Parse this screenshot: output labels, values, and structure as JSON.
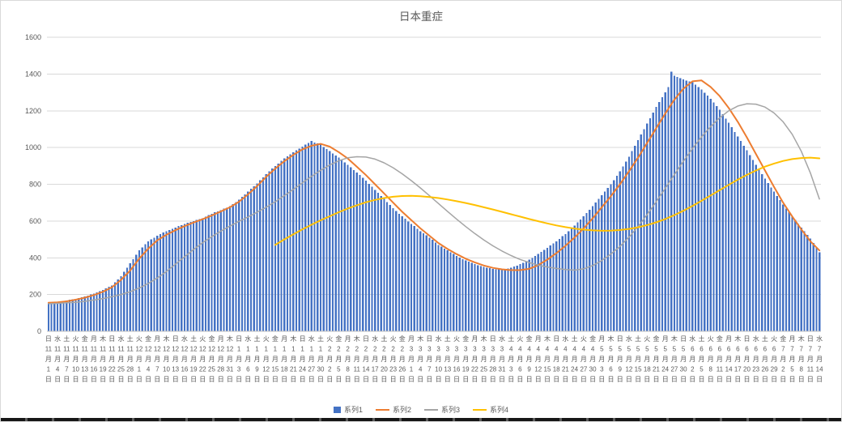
{
  "chart_data": {
    "type": "combo",
    "title": "日本重症",
    "grid": true,
    "legend_position": "bottom",
    "y_axis": {
      "ticks": [
        0,
        200,
        400,
        600,
        800,
        1000,
        1200,
        1400,
        1600
      ]
    },
    "x_axis": {
      "month_suffix": "月",
      "day_suffix": "日",
      "tick_labels": [
        [
          "日",
          11,
          1
        ],
        [
          "水",
          11,
          4
        ],
        [
          "土",
          11,
          7
        ],
        [
          "火",
          11,
          10
        ],
        [
          "金",
          11,
          13
        ],
        [
          "月",
          11,
          16
        ],
        [
          "木",
          11,
          19
        ],
        [
          "日",
          11,
          22
        ],
        [
          "水",
          11,
          25
        ],
        [
          "土",
          11,
          28
        ],
        [
          "火",
          12,
          1
        ],
        [
          "金",
          12,
          4
        ],
        [
          "月",
          12,
          7
        ],
        [
          "木",
          12,
          10
        ],
        [
          "日",
          12,
          13
        ],
        [
          "水",
          12,
          16
        ],
        [
          "土",
          12,
          19
        ],
        [
          "火",
          12,
          22
        ],
        [
          "金",
          12,
          25
        ],
        [
          "月",
          12,
          28
        ],
        [
          "木",
          12,
          31
        ],
        [
          "日",
          1,
          3
        ],
        [
          "水",
          1,
          6
        ],
        [
          "土",
          1,
          9
        ],
        [
          "火",
          1,
          12
        ],
        [
          "金",
          1,
          15
        ],
        [
          "月",
          1,
          18
        ],
        [
          "木",
          1,
          21
        ],
        [
          "日",
          1,
          24
        ],
        [
          "水",
          1,
          27
        ],
        [
          "土",
          1,
          30
        ],
        [
          "火",
          2,
          2
        ],
        [
          "金",
          2,
          5
        ],
        [
          "月",
          2,
          8
        ],
        [
          "木",
          2,
          11
        ],
        [
          "日",
          2,
          14
        ],
        [
          "水",
          2,
          17
        ],
        [
          "土",
          2,
          20
        ],
        [
          "火",
          2,
          23
        ],
        [
          "金",
          2,
          26
        ],
        [
          "月",
          3,
          1
        ],
        [
          "木",
          3,
          4
        ],
        [
          "日",
          3,
          7
        ],
        [
          "水",
          3,
          10
        ],
        [
          "土",
          3,
          13
        ],
        [
          "火",
          3,
          16
        ],
        [
          "金",
          3,
          19
        ],
        [
          "月",
          3,
          22
        ],
        [
          "木",
          3,
          25
        ],
        [
          "日",
          3,
          28
        ],
        [
          "水",
          3,
          31
        ],
        [
          "土",
          4,
          3
        ],
        [
          "火",
          4,
          6
        ],
        [
          "金",
          4,
          9
        ],
        [
          "月",
          4,
          12
        ],
        [
          "木",
          4,
          15
        ],
        [
          "日",
          4,
          18
        ],
        [
          "水",
          4,
          21
        ],
        [
          "土",
          4,
          24
        ],
        [
          "火",
          4,
          27
        ],
        [
          "金",
          4,
          30
        ],
        [
          "月",
          5,
          3
        ],
        [
          "木",
          5,
          6
        ],
        [
          "日",
          5,
          9
        ],
        [
          "水",
          5,
          12
        ],
        [
          "土",
          5,
          15
        ],
        [
          "火",
          5,
          18
        ],
        [
          "金",
          5,
          21
        ],
        [
          "月",
          5,
          24
        ],
        [
          "木",
          5,
          27
        ],
        [
          "日",
          5,
          30
        ],
        [
          "水",
          6,
          2
        ],
        [
          "土",
          6,
          5
        ],
        [
          "火",
          6,
          8
        ],
        [
          "金",
          6,
          11
        ],
        [
          "月",
          6,
          14
        ],
        [
          "木",
          6,
          17
        ],
        [
          "日",
          6,
          20
        ],
        [
          "水",
          6,
          23
        ],
        [
          "土",
          6,
          26
        ],
        [
          "火",
          6,
          29
        ],
        [
          "金",
          7,
          2
        ],
        [
          "月",
          7,
          5
        ],
        [
          "木",
          7,
          8
        ],
        [
          "日",
          7,
          11
        ],
        [
          "水",
          7,
          14
        ]
      ]
    },
    "series": [
      {
        "name": "系列1",
        "type": "bar",
        "color": "#4472C4",
        "sampling": "daily",
        "values": [
          155,
          157,
          158,
          160,
          163,
          165,
          168,
          171,
          174,
          177,
          181,
          186,
          190,
          195,
          200,
          205,
          212,
          218,
          225,
          233,
          242,
          250,
          267,
          283,
          300,
          323,
          347,
          370,
          393,
          417,
          440,
          457,
          473,
          490,
          500,
          510,
          520,
          528,
          537,
          545,
          552,
          558,
          565,
          572,
          578,
          585,
          590,
          595,
          600,
          605,
          610,
          615,
          623,
          632,
          640,
          647,
          653,
          660,
          667,
          673,
          680,
          692,
          704,
          716,
          731,
          745,
          760,
          775,
          790,
          805,
          822,
          838,
          855,
          870,
          885,
          900,
          913,
          927,
          940,
          952,
          963,
          975,
          985,
          995,
          1005,
          1015,
          1025,
          1035,
          1028,
          1022,
          1015,
          1003,
          992,
          980,
          968,
          957,
          945,
          932,
          918,
          905,
          892,
          878,
          865,
          850,
          835,
          820,
          803,
          787,
          770,
          753,
          737,
          720,
          703,
          687,
          670,
          655,
          640,
          625,
          612,
          598,
          585,
          572,
          558,
          545,
          533,
          522,
          510,
          497,
          483,
          470,
          460,
          450,
          440,
          430,
          420,
          410,
          402,
          393,
          385,
          378,
          372,
          365,
          360,
          355,
          350,
          347,
          343,
          340,
          338,
          337,
          335,
          338,
          342,
          345,
          352,
          358,
          365,
          373,
          382,
          390,
          400,
          410,
          420,
          432,
          443,
          455,
          467,
          478,
          490,
          503,
          517,
          530,
          545,
          560,
          575,
          592,
          608,
          625,
          643,
          662,
          680,
          700,
          720,
          740,
          760,
          780,
          800,
          823,
          847,
          870,
          897,
          923,
          950,
          980,
          1010,
          1040,
          1070,
          1100,
          1130,
          1160,
          1190,
          1220,
          1247,
          1273,
          1300,
          1330,
          1413,
          1390,
          1383,
          1377,
          1370,
          1365,
          1360,
          1355,
          1342,
          1328,
          1315,
          1298,
          1282,
          1265,
          1245,
          1225,
          1205,
          1182,
          1158,
          1135,
          1110,
          1085,
          1060,
          1035,
          1010,
          985,
          958,
          932,
          905,
          880,
          855,
          830,
          807,
          783,
          760,
          737,
          713,
          690,
          668,
          647,
          625,
          605,
          585,
          565,
          545,
          525,
          505,
          480,
          455,
          430
        ]
      },
      {
        "name": "系列2",
        "type": "line",
        "color": "#ED7D31",
        "sampling": "every-3-days",
        "values": [
          155,
          158,
          163,
          172,
          183,
          197,
          215,
          240,
          280,
          330,
          395,
          450,
          495,
          525,
          550,
          572,
          592,
          610,
          630,
          652,
          675,
          705,
          745,
          790,
          840,
          885,
          925,
          960,
          990,
          1010,
          1020,
          1005,
          975,
          940,
          895,
          850,
          800,
          750,
          700,
          650,
          605,
          560,
          520,
          480,
          448,
          420,
          395,
          375,
          358,
          345,
          337,
          333,
          333,
          340,
          360,
          390,
          425,
          465,
          510,
          560,
          615,
          675,
          735,
          800,
          870,
          945,
          1025,
          1105,
          1185,
          1260,
          1320,
          1360,
          1365,
          1330,
          1280,
          1215,
          1140,
          1055,
          965,
          875,
          785,
          700,
          625,
          555,
          490,
          440
        ]
      },
      {
        "name": "系列3",
        "type": "line",
        "color": "#A5A5A5",
        "sampling": "every-3-days",
        "values": [
          150,
          152,
          155,
          158,
          163,
          170,
          178,
          188,
          200,
          215,
          235,
          260,
          290,
          325,
          365,
          405,
          445,
          482,
          515,
          545,
          572,
          598,
          622,
          648,
          675,
          705,
          738,
          772,
          808,
          843,
          876,
          905,
          928,
          944,
          950,
          948,
          937,
          917,
          890,
          857,
          820,
          780,
          738,
          695,
          652,
          610,
          570,
          532,
          497,
          465,
          437,
          412,
          391,
          374,
          360,
          350,
          342,
          336,
          333,
          340,
          358,
          385,
          420,
          462,
          512,
          570,
          635,
          705,
          778,
          852,
          925,
          994,
          1058,
          1114,
          1162,
          1200,
          1226,
          1238,
          1236,
          1220,
          1188,
          1140,
          1072,
          980,
          862,
          720
        ]
      },
      {
        "name": "系列4",
        "type": "line",
        "color": "#FFC000",
        "sampling": "every-3-days",
        "values": [
          null,
          null,
          null,
          null,
          null,
          null,
          null,
          null,
          null,
          null,
          null,
          null,
          null,
          null,
          null,
          null,
          null,
          null,
          null,
          null,
          null,
          null,
          null,
          null,
          null,
          470,
          500,
          528,
          555,
          580,
          604,
          626,
          648,
          668,
          686,
          702,
          715,
          725,
          732,
          736,
          737,
          735,
          731,
          725,
          717,
          708,
          698,
          687,
          675,
          663,
          650,
          637,
          624,
          611,
          599,
          587,
          576,
          567,
          559,
          553,
          549,
          547,
          548,
          551,
          557,
          566,
          578,
          593,
          611,
          632,
          656,
          682,
          710,
          739,
          768,
          797,
          825,
          851,
          875,
          896,
          913,
          927,
          937,
          943,
          945,
          941
        ]
      }
    ]
  },
  "page": {
    "background": "#FFFFFF"
  }
}
